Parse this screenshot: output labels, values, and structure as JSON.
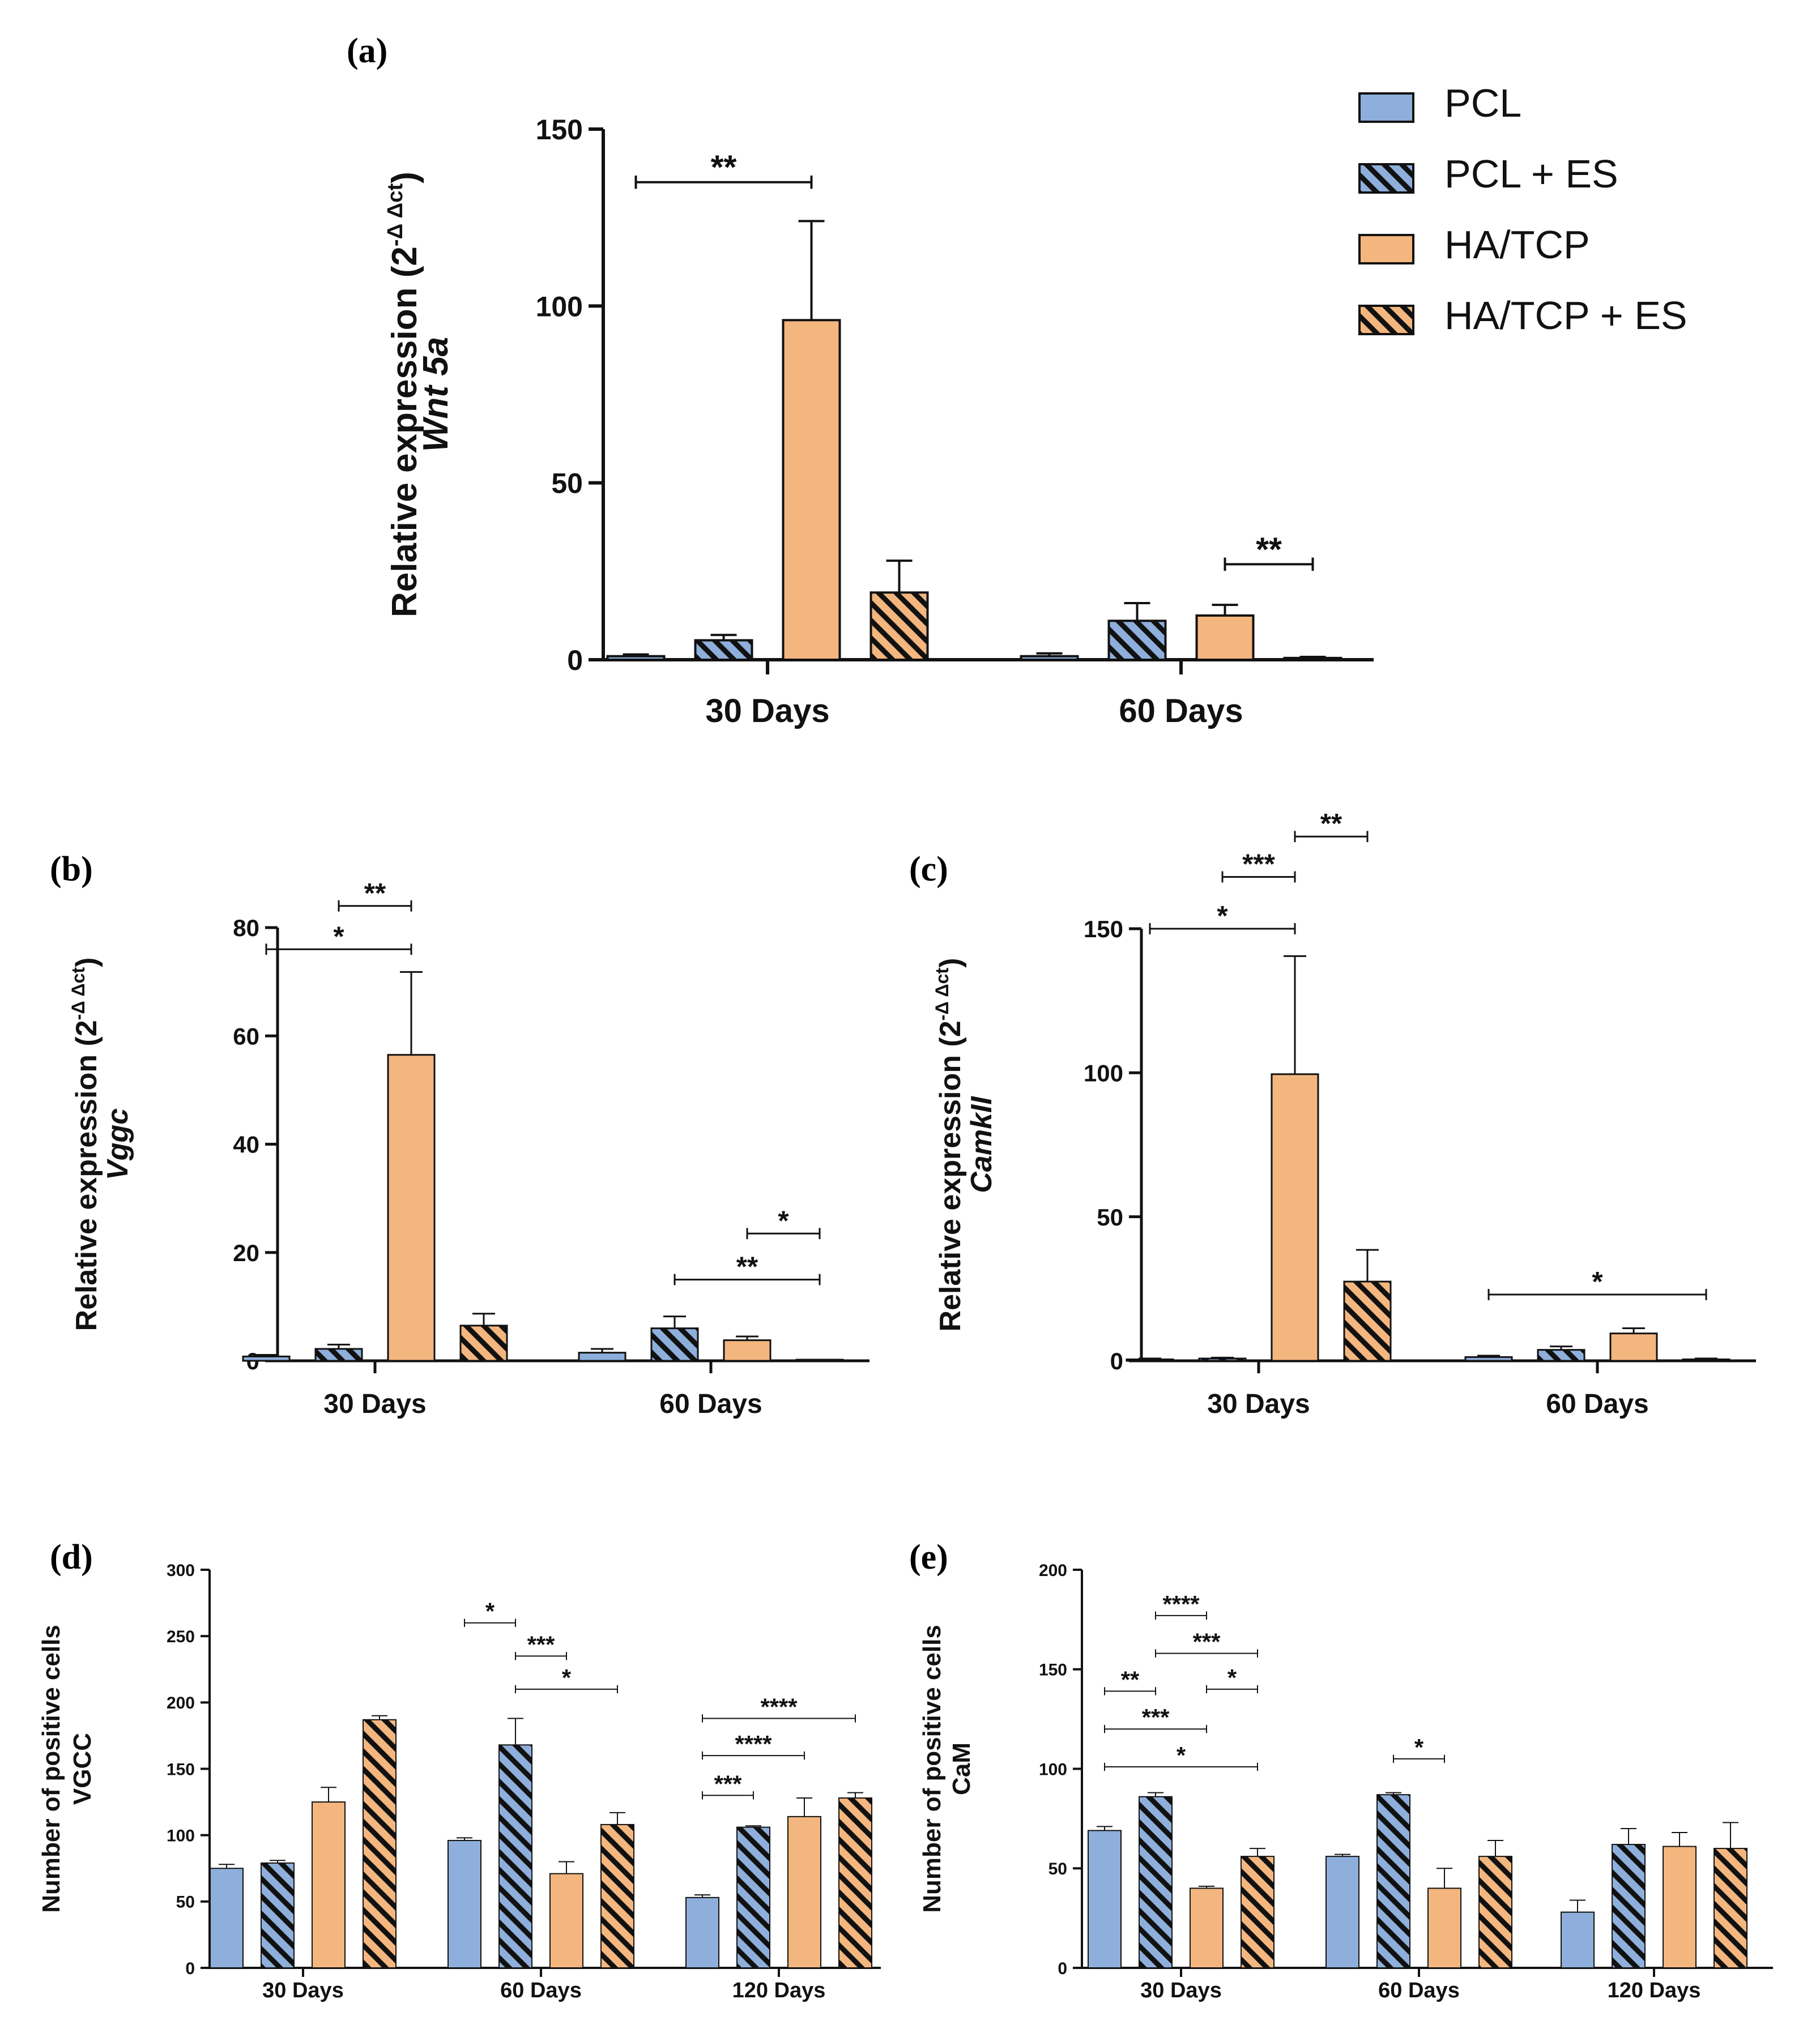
{
  "colors": {
    "pcl": "#8EAFDB",
    "hatcp": "#F4B67F",
    "stroke": "#111111",
    "hatch": "#111111"
  },
  "groups": [
    {
      "name": "PCL",
      "fill": "pcl",
      "hatched": false
    },
    {
      "name": "PCL + ES",
      "fill": "pcl",
      "hatched": true
    },
    {
      "name": "HA/TCP",
      "fill": "hatcp",
      "hatched": false
    },
    {
      "name": "HA/TCP + ES",
      "fill": "hatcp",
      "hatched": true
    }
  ],
  "legend": {
    "items": [
      "PCL",
      "PCL + ES",
      "HA/TCP",
      "HA/TCP + ES"
    ],
    "placement": "top-right"
  },
  "chart_data": [
    {
      "panel": "(a)",
      "type": "bar",
      "ylabel": "Relative expression (2",
      "ylabel_sup": "-Δ Δct",
      "ylabel_close": ")",
      "ylabel2": "Wnt 5a",
      "categories": [
        "30 Days",
        "60 Days"
      ],
      "ylim": [
        0,
        150
      ],
      "yticks": [
        0,
        50,
        100,
        150
      ],
      "series": [
        {
          "name": "PCL",
          "values": [
            1,
            1
          ],
          "errors": [
            0.5,
            0.8
          ]
        },
        {
          "name": "PCL + ES",
          "values": [
            5.5,
            11
          ],
          "errors": [
            1.5,
            5
          ]
        },
        {
          "name": "HA/TCP",
          "values": [
            96,
            12.5
          ],
          "errors": [
            28,
            3
          ]
        },
        {
          "name": "HA/TCP + ES",
          "values": [
            19,
            0.5
          ],
          "errors": [
            9,
            0.3
          ]
        }
      ],
      "annotations": [
        {
          "label": "**",
          "category": 0,
          "from": 0,
          "to": 2,
          "y": 135
        },
        {
          "label": "**",
          "category": 1,
          "from": 2,
          "to": 3,
          "y": 27
        }
      ]
    },
    {
      "panel": "(b)",
      "type": "bar",
      "ylabel": "Relative expression (2",
      "ylabel_sup": "-Δ Δct",
      "ylabel_close": ")",
      "ylabel2": "Vggc",
      "categories": [
        "30 Days",
        "60 Days"
      ],
      "ylim": [
        0,
        80
      ],
      "yticks": [
        0,
        20,
        40,
        60,
        80
      ],
      "series": [
        {
          "name": "PCL",
          "values": [
            0.8,
            1.5
          ],
          "errors": [
            0.3,
            0.7
          ]
        },
        {
          "name": "PCL + ES",
          "values": [
            2.2,
            6
          ],
          "errors": [
            0.8,
            2.2
          ]
        },
        {
          "name": "HA/TCP",
          "values": [
            56.5,
            3.8
          ],
          "errors": [
            15.3,
            0.7
          ]
        },
        {
          "name": "HA/TCP + ES",
          "values": [
            6.5,
            0
          ],
          "errors": [
            2.2,
            0
          ]
        }
      ],
      "annotations": [
        {
          "label": "**",
          "category": 0,
          "from": 1,
          "to": 2,
          "y": 84
        },
        {
          "label": "*",
          "category": 0,
          "from": 0,
          "to": 2,
          "y": 76
        },
        {
          "label": "*",
          "category": 1,
          "from": 2,
          "to": 3,
          "y": 23.5
        },
        {
          "label": "**",
          "category": 1,
          "from": 1,
          "to": 3,
          "y": 15
        }
      ]
    },
    {
      "panel": "(c)",
      "type": "bar",
      "ylabel": "Relative expression (2",
      "ylabel_sup": "-Δ Δct",
      "ylabel_close": ")",
      "ylabel2": "CamkII",
      "categories": [
        "30 Days",
        "60 Days"
      ],
      "ylim": [
        0,
        150
      ],
      "yticks": [
        0,
        50,
        100,
        150
      ],
      "series": [
        {
          "name": "PCL",
          "values": [
            0.5,
            1.3
          ],
          "errors": [
            0.3,
            0.5
          ]
        },
        {
          "name": "PCL + ES",
          "values": [
            0.8,
            3.8
          ],
          "errors": [
            0.3,
            1.2
          ]
        },
        {
          "name": "HA/TCP",
          "values": [
            99.5,
            9.5
          ],
          "errors": [
            41,
            1.8
          ]
        },
        {
          "name": "HA/TCP + ES",
          "values": [
            27.5,
            0.5
          ],
          "errors": [
            11,
            0.3
          ]
        }
      ],
      "annotations": [
        {
          "label": "**",
          "category": 0,
          "from": 2,
          "to": 3,
          "y": 182
        },
        {
          "label": "***",
          "category": 0,
          "from": 1,
          "to": 2,
          "y": 168
        },
        {
          "label": "*",
          "category": 0,
          "from": 0,
          "to": 2,
          "y": 150
        },
        {
          "label": "*",
          "category": 1,
          "from": 0,
          "to": 3,
          "y": 23
        }
      ]
    },
    {
      "panel": "(d)",
      "type": "bar",
      "ylabel": "Number of positive cells",
      "ylabel2": "VGCC",
      "categories": [
        "30 Days",
        "60 Days",
        "120 Days"
      ],
      "ylim": [
        0,
        300
      ],
      "yticks": [
        0,
        50,
        100,
        150,
        200,
        250,
        300
      ],
      "series": [
        {
          "name": "PCL",
          "values": [
            75,
            96,
            53
          ],
          "errors": [
            3,
            2,
            2
          ]
        },
        {
          "name": "PCL + ES",
          "values": [
            79,
            168,
            106
          ],
          "errors": [
            2,
            20,
            1
          ]
        },
        {
          "name": "HA/TCP",
          "values": [
            125,
            71,
            114
          ],
          "errors": [
            11,
            9,
            14
          ]
        },
        {
          "name": "HA/TCP + ES",
          "values": [
            187,
            108,
            128
          ],
          "errors": [
            3,
            9,
            4
          ]
        }
      ],
      "annotations": [
        {
          "label": "*",
          "category": 1,
          "from": 0,
          "to": 1,
          "y": 260
        },
        {
          "label": "***",
          "category": 1,
          "from": 1,
          "to": 2,
          "y": 235
        },
        {
          "label": "*",
          "category": 1,
          "from": 1,
          "to": 3,
          "y": 210
        },
        {
          "label": "****",
          "category": 2,
          "from": 0,
          "to": 3,
          "y": 188
        },
        {
          "label": "****",
          "category": 2,
          "from": 0,
          "to": 2,
          "y": 160
        },
        {
          "label": "***",
          "category": 2,
          "from": 0,
          "to": 1,
          "y": 130
        }
      ]
    },
    {
      "panel": "(e)",
      "type": "bar",
      "ylabel": "Number of positive cells",
      "ylabel2": "CaM",
      "categories": [
        "30 Days",
        "60 Days",
        "120 Days"
      ],
      "ylim": [
        0,
        200
      ],
      "yticks": [
        0,
        50,
        100,
        150,
        200
      ],
      "series": [
        {
          "name": "PCL",
          "values": [
            69,
            56,
            28
          ],
          "errors": [
            2,
            1,
            6
          ]
        },
        {
          "name": "PCL + ES",
          "values": [
            86,
            87,
            62
          ],
          "errors": [
            2,
            1,
            8
          ]
        },
        {
          "name": "HA/TCP",
          "values": [
            40,
            40,
            61
          ],
          "errors": [
            1,
            10,
            7
          ]
        },
        {
          "name": "HA/TCP + ES",
          "values": [
            56,
            56,
            60
          ],
          "errors": [
            4,
            8,
            13
          ]
        }
      ],
      "annotations": [
        {
          "label": "****",
          "category": 0,
          "from": 1,
          "to": 2,
          "y": 177
        },
        {
          "label": "***",
          "category": 0,
          "from": 1,
          "to": 3,
          "y": 158
        },
        {
          "label": "**",
          "category": 0,
          "from": 0,
          "to": 1,
          "y": 139
        },
        {
          "label": "*",
          "category": 0,
          "from": 2,
          "to": 3,
          "y": 140
        },
        {
          "label": "***",
          "category": 0,
          "from": 0,
          "to": 2,
          "y": 120
        },
        {
          "label": "*",
          "category": 0,
          "from": 0,
          "to": 3,
          "y": 101
        },
        {
          "label": "*",
          "category": 1,
          "from": 1,
          "to": 2,
          "y": 105
        }
      ]
    }
  ]
}
